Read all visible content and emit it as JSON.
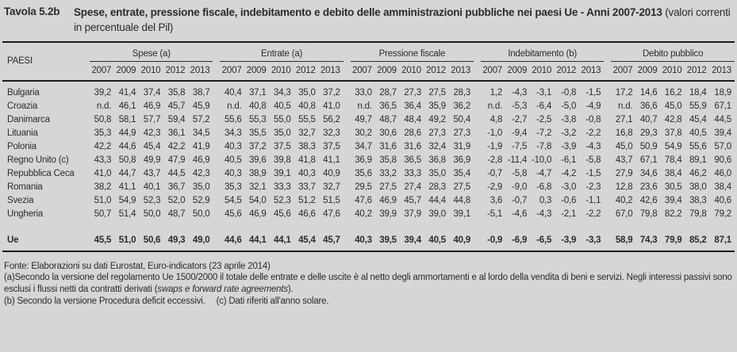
{
  "title": {
    "label": "Tavola 5.2b",
    "main": "Spese, entrate, pressione fiscale, indebitamento e debito delle amministrazioni pubbliche nei paesi Ue - Anni 2007-2013",
    "subtitle": "(valori correnti in percentuale del Pil)"
  },
  "table": {
    "row_header": "PAESI",
    "groups": [
      "Spese (a)",
      "Entrate (a)",
      "Pressione fiscale",
      "Indebitamento (b)",
      "Debito pubblico"
    ],
    "years": [
      "2007",
      "2009",
      "2010",
      "2012",
      "2013"
    ],
    "rows": [
      {
        "paese": "Bulgaria",
        "spese": [
          "39,2",
          "41,4",
          "37,4",
          "35,8",
          "38,7"
        ],
        "entrate": [
          "40,4",
          "37,1",
          "34,3",
          "35,0",
          "37,2"
        ],
        "pressione": [
          "33,0",
          "28,7",
          "27,3",
          "27,5",
          "28,3"
        ],
        "indebitamento": [
          "1,2",
          "-4,3",
          "-3,1",
          "-0,8",
          "-1,5"
        ],
        "debito": [
          "17,2",
          "14,6",
          "16,2",
          "18,4",
          "18,9"
        ]
      },
      {
        "paese": "Croazia",
        "spese": [
          "n.d.",
          "46,1",
          "46,9",
          "45,7",
          "45,9"
        ],
        "entrate": [
          "n.d.",
          "40,8",
          "40,5",
          "40,8",
          "41,0"
        ],
        "pressione": [
          "n.d.",
          "36,5",
          "36,4",
          "35,9",
          "36,2"
        ],
        "indebitamento": [
          "n.d.",
          "-5,3",
          "-6,4",
          "-5,0",
          "-4,9"
        ],
        "debito": [
          "n.d.",
          "36,6",
          "45,0",
          "55,9",
          "67,1"
        ]
      },
      {
        "paese": "Danimarca",
        "spese": [
          "50,8",
          "58,1",
          "57,7",
          "59,4",
          "57,2"
        ],
        "entrate": [
          "55,6",
          "55,3",
          "55,0",
          "55,5",
          "56,2"
        ],
        "pressione": [
          "49,7",
          "48,7",
          "48,4",
          "49,2",
          "50,4"
        ],
        "indebitamento": [
          "4,8",
          "-2,7",
          "-2,5",
          "-3,8",
          "-0,8"
        ],
        "debito": [
          "27,1",
          "40,7",
          "42,8",
          "45,4",
          "44,5"
        ]
      },
      {
        "paese": "Lituania",
        "spese": [
          "35,3",
          "44,9",
          "42,3",
          "36,1",
          "34,5"
        ],
        "entrate": [
          "34,3",
          "35,5",
          "35,0",
          "32,7",
          "32,3"
        ],
        "pressione": [
          "30,2",
          "30,6",
          "28,6",
          "27,3",
          "27,3"
        ],
        "indebitamento": [
          "-1,0",
          "-9,4",
          "-7,2",
          "-3,2",
          "-2,2"
        ],
        "debito": [
          "16,8",
          "29,3",
          "37,8",
          "40,5",
          "39,4"
        ]
      },
      {
        "paese": "Polonia",
        "spese": [
          "42,2",
          "44,6",
          "45,4",
          "42,2",
          "41,9"
        ],
        "entrate": [
          "40,3",
          "37,2",
          "37,5",
          "38,3",
          "37,5"
        ],
        "pressione": [
          "34,7",
          "31,6",
          "31,6",
          "32,4",
          "31,9"
        ],
        "indebitamento": [
          "-1,9",
          "-7,5",
          "-7,8",
          "-3,9",
          "-4,3"
        ],
        "debito": [
          "45,0",
          "50,9",
          "54,9",
          "55,6",
          "57,0"
        ]
      },
      {
        "paese": "Regno Unito (c)",
        "spese": [
          "43,3",
          "50,8",
          "49,9",
          "47,9",
          "46,9"
        ],
        "entrate": [
          "40,5",
          "39,6",
          "39,8",
          "41,8",
          "41,1"
        ],
        "pressione": [
          "36,9",
          "35,8",
          "36,5",
          "36,8",
          "36,9"
        ],
        "indebitamento": [
          "-2,8",
          "-11,4",
          "-10,0",
          "-6,1",
          "-5,8"
        ],
        "debito": [
          "43,7",
          "67,1",
          "78,4",
          "89,1",
          "90,6"
        ]
      },
      {
        "paese": "Repubblica Ceca",
        "spese": [
          "41,0",
          "44,7",
          "43,7",
          "44,5",
          "42,3"
        ],
        "entrate": [
          "40,3",
          "38,9",
          "39,1",
          "40,3",
          "40,9"
        ],
        "pressione": [
          "35,6",
          "33,2",
          "33,3",
          "35,0",
          "35,4"
        ],
        "indebitamento": [
          "-0,7",
          "-5,8",
          "-4,7",
          "-4,2",
          "-1,5"
        ],
        "debito": [
          "27,9",
          "34,6",
          "38,4",
          "46,2",
          "46,0"
        ]
      },
      {
        "paese": "Romania",
        "spese": [
          "38,2",
          "41,1",
          "40,1",
          "36,7",
          "35,0"
        ],
        "entrate": [
          "35,3",
          "32,1",
          "33,3",
          "33,7",
          "32,7"
        ],
        "pressione": [
          "29,5",
          "27,5",
          "27,4",
          "28,3",
          "27,5"
        ],
        "indebitamento": [
          "-2,9",
          "-9,0",
          "-6,8",
          "-3,0",
          "-2,3"
        ],
        "debito": [
          "12,8",
          "23,6",
          "30,5",
          "38,0",
          "38,4"
        ]
      },
      {
        "paese": "Svezia",
        "spese": [
          "51,0",
          "54,9",
          "52,3",
          "52,0",
          "52,9"
        ],
        "entrate": [
          "54,5",
          "54,0",
          "52,3",
          "51,2",
          "51,5"
        ],
        "pressione": [
          "47,6",
          "46,9",
          "45,7",
          "44,4",
          "44,8"
        ],
        "indebitamento": [
          "3,6",
          "-0,7",
          "0,3",
          "-0,6",
          "-1,1"
        ],
        "debito": [
          "40,2",
          "42,6",
          "39,4",
          "38,3",
          "40,6"
        ]
      },
      {
        "paese": "Ungheria",
        "spese": [
          "50,7",
          "51,4",
          "50,0",
          "48,7",
          "50,0"
        ],
        "entrate": [
          "45,6",
          "46,9",
          "45,6",
          "46,6",
          "47,6"
        ],
        "pressione": [
          "40,2",
          "39,9",
          "37,9",
          "39,0",
          "39,1"
        ],
        "indebitamento": [
          "-5,1",
          "-4,6",
          "-4,3",
          "-2,1",
          "-2,2"
        ],
        "debito": [
          "67,0",
          "79,8",
          "82,2",
          "79,8",
          "79,2"
        ]
      }
    ],
    "total_row": {
      "paese": "Ue",
      "spese": [
        "45,5",
        "51,0",
        "50,6",
        "49,3",
        "49,0"
      ],
      "entrate": [
        "44,6",
        "44,1",
        "44,1",
        "45,4",
        "45,7"
      ],
      "pressione": [
        "40,3",
        "39,5",
        "39,4",
        "40,5",
        "40,9"
      ],
      "indebitamento": [
        "-0,9",
        "-6,9",
        "-6,5",
        "-3,9",
        "-3,3"
      ],
      "debito": [
        "58,9",
        "74,3",
        "79,9",
        "85,2",
        "87,1"
      ]
    }
  },
  "footnotes": {
    "source": "Fonte: Elaborazioni su dati Eurostat, Euro-indicators (23 aprile 2014)",
    "note_a_before": "(a)Secondo la versione del regolamento Ue 1500/2000 il totale delle entrate e delle uscite è al netto degli ammortamenti e al lordo della vendita di beni e servizi. Negli interessi passivi sono esclusi i flussi netti da contratti derivati (",
    "note_a_italic": "swaps e forward rate agreements",
    "note_a_after": ").",
    "note_b": "(b) Secondo la versione Procedura deficit eccessivi.",
    "note_c": "(c) Dati riferiti all'anno solare."
  },
  "colors": {
    "background": "#d6d6d6",
    "text": "#2b2b2b",
    "rule": "#1b1b1b"
  }
}
